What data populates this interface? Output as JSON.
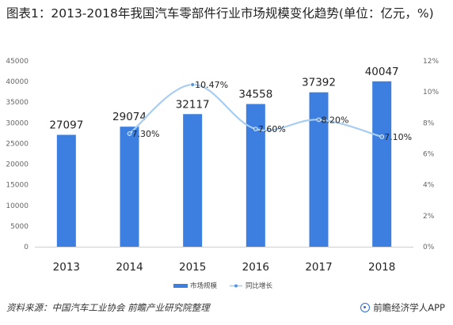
{
  "title": "图表1：2013-2018年我国汽车零部件行业市场规模变化趋势(单位：亿元，%)",
  "source": "资料来源：中国汽车工业协会 前瞻产业研究院整理",
  "brand": "前瞻经济学人APP",
  "colors": {
    "bar": "#3d7fe0",
    "line": "#a8cdf2",
    "marker": "#5a95e0"
  },
  "chart_data": {
    "type": "bar",
    "categories": [
      "2013",
      "2014",
      "2015",
      "2016",
      "2017",
      "2018"
    ],
    "series": [
      {
        "name": "市场规模",
        "type": "bar",
        "axis": "left",
        "values": [
          27097,
          29074,
          32117,
          34558,
          37392,
          40047
        ],
        "labels": [
          "27097",
          "29074",
          "32117",
          "34558",
          "37392",
          "40047"
        ]
      },
      {
        "name": "同比增长",
        "type": "line",
        "axis": "right",
        "values": [
          null,
          7.3,
          10.47,
          7.6,
          8.2,
          7.1
        ],
        "labels": [
          "",
          "7.30%",
          "10.47%",
          "7.60%",
          "8.20%",
          "7.10%"
        ]
      }
    ],
    "y_left": {
      "min": 0,
      "max": 45000,
      "step": 5000
    },
    "y_right": {
      "min": 0,
      "max": 12,
      "step": 2,
      "suffix": "%"
    },
    "legend_position": "bottom-center",
    "grid": false
  }
}
